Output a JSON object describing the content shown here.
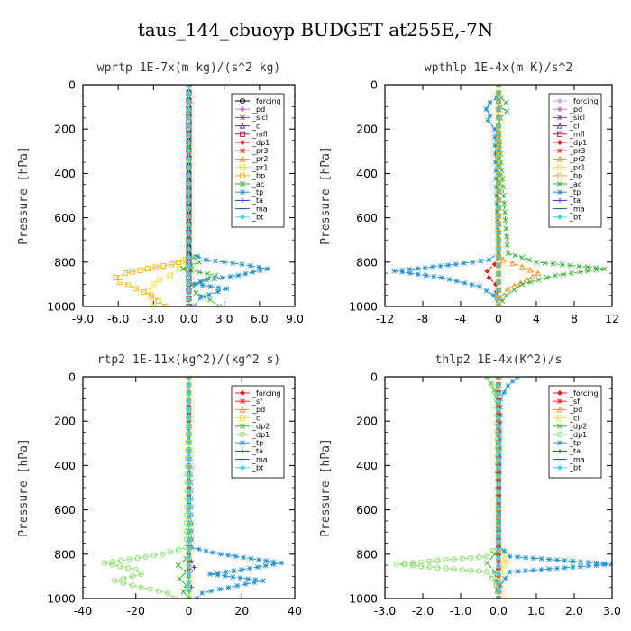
{
  "figure_title": "taus_144_cbuoyp  BUDGET at255E,-7N",
  "chart_data": [
    {
      "type": "line",
      "title": "wprtp  1E-7x(m kg)/(s^2 kg)",
      "ylabel": "Pressure [hPa]",
      "xlim": [
        -9,
        9
      ],
      "ylim": [
        1000,
        0
      ],
      "xticks": [
        -9,
        -6,
        -3,
        0,
        3,
        6,
        9
      ],
      "xtick_labels": [
        "-9.0",
        "-6.0",
        "-3.0",
        "0.0",
        "3.0",
        "6.0",
        "9.0"
      ],
      "yticks": [
        0,
        200,
        400,
        600,
        800,
        1000
      ],
      "ytick_labels": [
        "0",
        "200",
        "400",
        "600",
        "800",
        "1000"
      ],
      "legend": "top-right",
      "series": [
        {
          "name": "_forcing",
          "color": "#000000",
          "marker": "circle",
          "x": [
            0,
            0,
            0,
            0,
            0,
            0,
            0,
            0,
            0,
            0,
            0
          ],
          "y": [
            0,
            100,
            200,
            300,
            400,
            500,
            600,
            700,
            800,
            900,
            1000
          ]
        },
        {
          "name": "_pd",
          "color": "#c080c0",
          "marker": "diamond",
          "x": [
            0,
            0
          ],
          "y": [
            0,
            1000
          ]
        },
        {
          "name": "_sicl",
          "color": "#8040c0",
          "marker": "star",
          "x": [
            0,
            0
          ],
          "y": [
            0,
            1000
          ]
        },
        {
          "name": "_cl",
          "color": "#603090",
          "marker": "triangle",
          "x": [
            0,
            0
          ],
          "y": [
            0,
            1000
          ]
        },
        {
          "name": "_mfl",
          "color": "#a0205a",
          "marker": "square",
          "x": [
            0,
            0
          ],
          "y": [
            0,
            1000
          ]
        },
        {
          "name": "_dp1",
          "color": "#e02020",
          "marker": "diamond",
          "x": [
            0,
            0
          ],
          "y": [
            0,
            1000
          ]
        },
        {
          "name": "_pr3",
          "color": "#ff2020",
          "marker": "star",
          "x": [
            0,
            0
          ],
          "y": [
            0,
            1000
          ]
        },
        {
          "name": "_pr2",
          "color": "#ff9020",
          "marker": "triangle",
          "x": [
            0,
            0
          ],
          "y": [
            0,
            1000
          ]
        },
        {
          "name": "_pr1",
          "color": "#f0e030",
          "marker": "square",
          "x": [
            0,
            0,
            0,
            -0.3,
            -0.8,
            -1.6,
            -2.5,
            -3.0,
            -3.4,
            -3.2,
            -3.0
          ],
          "y": [
            0,
            700,
            780,
            800,
            830,
            860,
            880,
            900,
            930,
            960,
            1000
          ]
        },
        {
          "name": "_bp",
          "color": "#ffb000",
          "marker": "square",
          "x": [
            0,
            0,
            -0.3,
            -1.5,
            -3.5,
            -5.4,
            -6.2,
            -5.8,
            -4.5,
            -3.2,
            -2.0
          ],
          "y": [
            0,
            760,
            790,
            810,
            830,
            850,
            870,
            890,
            920,
            950,
            1000
          ]
        },
        {
          "name": "_ac",
          "color": "#30b030",
          "marker": "x",
          "x": [
            0,
            0,
            0.4,
            0.9,
            -0.5,
            2.3,
            0.3,
            0.6,
            1.8,
            2.6
          ],
          "y": [
            0,
            750,
            780,
            800,
            830,
            860,
            900,
            940,
            970,
            1000
          ]
        },
        {
          "name": "_tp",
          "color": "#2090d0",
          "marker": "star",
          "x": [
            0,
            0,
            1.5,
            4.5,
            6.7,
            4.2,
            1.5,
            0.5,
            3.2,
            1.0,
            0.4
          ],
          "y": [
            0,
            760,
            790,
            810,
            830,
            860,
            880,
            900,
            920,
            960,
            1000
          ]
        },
        {
          "name": "_ta",
          "color": "#2040d0",
          "marker": "plus",
          "x": [
            0,
            0
          ],
          "y": [
            0,
            1000
          ]
        },
        {
          "name": "_ma",
          "color": "#2060a0",
          "marker": "dash",
          "x": [
            0,
            0
          ],
          "y": [
            0,
            1000
          ]
        },
        {
          "name": "_bt",
          "color": "#40d0f0",
          "marker": "diamond",
          "x": [
            0,
            0
          ],
          "y": [
            0,
            1000
          ]
        }
      ]
    },
    {
      "type": "line",
      "title": "wpthlp  1E-4x(m K)/s^2",
      "ylabel": "Pressure [hPa]",
      "xlim": [
        -12,
        12
      ],
      "ylim": [
        1000,
        0
      ],
      "xticks": [
        -12,
        -8,
        -4,
        0,
        4,
        8,
        12
      ],
      "xtick_labels": [
        "-12",
        "-8",
        "-4",
        "0",
        "4",
        "8",
        "12"
      ],
      "yticks": [
        0,
        200,
        400,
        600,
        800,
        1000
      ],
      "ytick_labels": [
        "0",
        "200",
        "400",
        "600",
        "800",
        "1000"
      ],
      "legend": "top-right",
      "series": [
        {
          "name": "_forcing",
          "color": "#d0a0e0",
          "marker": "diamond",
          "x": [
            0,
            0
          ],
          "y": [
            0,
            1000
          ]
        },
        {
          "name": "_pd",
          "color": "#c080c0",
          "marker": "diamond",
          "x": [
            0,
            0
          ],
          "y": [
            0,
            1000
          ]
        },
        {
          "name": "_sicl",
          "color": "#8040c0",
          "marker": "star",
          "x": [
            0,
            0
          ],
          "y": [
            0,
            1000
          ]
        },
        {
          "name": "_cl",
          "color": "#603090",
          "marker": "triangle",
          "x": [
            0,
            0
          ],
          "y": [
            0,
            1000
          ]
        },
        {
          "name": "_mfl",
          "color": "#a0205a",
          "marker": "square",
          "x": [
            0,
            0
          ],
          "y": [
            0,
            1000
          ]
        },
        {
          "name": "_dp1",
          "color": "#e02020",
          "marker": "diamond",
          "x": [
            0,
            0,
            -0.4,
            -1.2,
            -1.0,
            -0.3,
            0
          ],
          "y": [
            0,
            780,
            810,
            840,
            870,
            900,
            1000
          ]
        },
        {
          "name": "_pr3",
          "color": "#ff2020",
          "marker": "star",
          "x": [
            0,
            0
          ],
          "y": [
            0,
            1000
          ]
        },
        {
          "name": "_pr2",
          "color": "#ff9020",
          "marker": "triangle",
          "x": [
            0,
            0,
            0.5,
            2.5,
            4.2,
            3.0,
            1.0,
            0.2,
            0
          ],
          "y": [
            0,
            760,
            790,
            820,
            850,
            880,
            920,
            960,
            1000
          ]
        },
        {
          "name": "_pr1",
          "color": "#f0e030",
          "marker": "square",
          "x": [
            0,
            0
          ],
          "y": [
            0,
            1000
          ]
        },
        {
          "name": "_bp",
          "color": "#ffb000",
          "marker": "square",
          "x": [
            0,
            0
          ],
          "y": [
            0,
            1000
          ]
        },
        {
          "name": "_ac",
          "color": "#30b030",
          "marker": "x",
          "x": [
            0.3,
            0.8,
            0.2,
            0.9,
            0.2,
            0,
            1.0,
            4.0,
            11.2,
            6.0,
            2.5,
            0.8,
            0
          ],
          "y": [
            60,
            80,
            100,
            120,
            150,
            200,
            760,
            800,
            830,
            860,
            900,
            950,
            1000
          ]
        },
        {
          "name": "_tp",
          "color": "#2090d0",
          "marker": "star",
          "x": [
            -0.2,
            -0.9,
            -1.3,
            -0.9,
            -1.1,
            -0.4,
            0,
            -1.0,
            -4.5,
            -11.0,
            -6.0,
            -2.0,
            -0.5,
            0
          ],
          "y": [
            60,
            80,
            110,
            140,
            160,
            200,
            760,
            790,
            810,
            840,
            870,
            910,
            950,
            1000
          ]
        },
        {
          "name": "_ta",
          "color": "#2040d0",
          "marker": "plus",
          "x": [
            0,
            0
          ],
          "y": [
            0,
            1000
          ]
        },
        {
          "name": "_ma",
          "color": "#2060a0",
          "marker": "dash",
          "x": [
            0,
            0
          ],
          "y": [
            0,
            1000
          ]
        },
        {
          "name": "_bt",
          "color": "#40d0f0",
          "marker": "diamond",
          "x": [
            0,
            0
          ],
          "y": [
            0,
            1000
          ]
        }
      ]
    },
    {
      "type": "line",
      "title": "rtp2  1E-11x(kg^2)/(kg^2 s)",
      "ylabel": "Pressure [hPa]",
      "xlim": [
        -40,
        40
      ],
      "ylim": [
        1000,
        0
      ],
      "xticks": [
        -40,
        -20,
        0,
        20,
        40
      ],
      "xtick_labels": [
        "-40",
        "-20",
        "0",
        "20",
        "40"
      ],
      "yticks": [
        0,
        200,
        400,
        600,
        800,
        1000
      ],
      "ytick_labels": [
        "0",
        "200",
        "400",
        "600",
        "800",
        "1000"
      ],
      "legend": "top-right",
      "series": [
        {
          "name": "_forcing",
          "color": "#e02020",
          "marker": "diamond",
          "x": [
            0,
            0,
            0,
            0,
            0,
            0,
            0,
            0,
            0,
            0,
            0
          ],
          "y": [
            0,
            100,
            200,
            300,
            400,
            500,
            600,
            700,
            800,
            900,
            1000
          ]
        },
        {
          "name": "_sf",
          "color": "#ff2020",
          "marker": "star",
          "x": [
            0,
            0
          ],
          "y": [
            0,
            1000
          ]
        },
        {
          "name": "_pd",
          "color": "#ff9020",
          "marker": "triangle",
          "x": [
            0,
            0
          ],
          "y": [
            0,
            1000
          ]
        },
        {
          "name": "_cl",
          "color": "#f0e030",
          "marker": "square",
          "x": [
            0,
            0
          ],
          "y": [
            0,
            1000
          ]
        },
        {
          "name": "_dp2",
          "color": "#30b030",
          "marker": "x",
          "x": [
            0,
            0,
            -1.0,
            -4.0,
            -1.0,
            -3.5,
            -1.0,
            -2.0,
            0
          ],
          "y": [
            0,
            780,
            820,
            850,
            880,
            910,
            940,
            970,
            1000
          ]
        },
        {
          "name": "_dp1",
          "color": "#80e060",
          "marker": "circle",
          "x": [
            0,
            -1,
            -10,
            -32,
            -20,
            -18,
            -28,
            -18,
            -8,
            -5
          ],
          "y": [
            0,
            770,
            800,
            840,
            870,
            890,
            920,
            950,
            975,
            1000
          ]
        },
        {
          "name": "_tp",
          "color": "#2090d0",
          "marker": "star",
          "x": [
            0,
            1,
            12,
            35,
            20,
            8,
            28,
            15,
            5,
            3
          ],
          "y": [
            0,
            770,
            800,
            840,
            870,
            890,
            920,
            950,
            975,
            1000
          ]
        },
        {
          "name": "_ta",
          "color": "#2040d0",
          "marker": "plus",
          "x": [
            0,
            0,
            2,
            0,
            1,
            0
          ],
          "y": [
            0,
            800,
            860,
            900,
            950,
            1000
          ]
        },
        {
          "name": "_ma",
          "color": "#2060a0",
          "marker": "dash",
          "x": [
            0,
            0
          ],
          "y": [
            0,
            1000
          ]
        },
        {
          "name": "_bt",
          "color": "#40d0f0",
          "marker": "diamond",
          "x": [
            0,
            0
          ],
          "y": [
            0,
            1000
          ]
        }
      ]
    },
    {
      "type": "line",
      "title": "thlp2  1E-4x(K^2)/s",
      "ylabel": "Pressure [hPa]",
      "xlim": [
        -3,
        3
      ],
      "ylim": [
        1000,
        0
      ],
      "xticks": [
        -3,
        -2,
        -1,
        0,
        1,
        2,
        3
      ],
      "xtick_labels": [
        "-3.0",
        "-2.0",
        "-1.0",
        "0.0",
        "1.0",
        "2.0",
        "3.0"
      ],
      "yticks": [
        0,
        200,
        400,
        600,
        800,
        1000
      ],
      "ytick_labels": [
        "0",
        "200",
        "400",
        "600",
        "800",
        "1000"
      ],
      "legend": "top-right",
      "series": [
        {
          "name": "_forcing",
          "color": "#e02020",
          "marker": "diamond",
          "x": [
            0,
            0,
            0,
            0,
            0,
            0,
            0,
            0,
            0,
            0,
            0
          ],
          "y": [
            0,
            100,
            200,
            300,
            400,
            500,
            600,
            700,
            800,
            900,
            1000
          ]
        },
        {
          "name": "_sf",
          "color": "#ff2020",
          "marker": "star",
          "x": [
            0,
            0
          ],
          "y": [
            0,
            1000
          ]
        },
        {
          "name": "_pd",
          "color": "#ff9020",
          "marker": "triangle",
          "x": [
            0,
            0
          ],
          "y": [
            0,
            1000
          ]
        },
        {
          "name": "_cl",
          "color": "#f0e030",
          "marker": "square",
          "x": [
            0,
            0,
            0.1,
            0.2,
            0.15,
            0.05,
            0
          ],
          "y": [
            0,
            760,
            790,
            820,
            850,
            880,
            1000
          ]
        },
        {
          "name": "_dp2",
          "color": "#30b030",
          "marker": "x",
          "x": [
            -0.3,
            -0.1,
            0,
            0,
            -0.1,
            -0.3,
            -0.1,
            0
          ],
          "y": [
            0,
            60,
            150,
            760,
            800,
            840,
            880,
            1000
          ]
        },
        {
          "name": "_dp1",
          "color": "#80e060",
          "marker": "circle",
          "x": [
            -0.3,
            -0.15,
            -0.05,
            0,
            -0.3,
            -2.7,
            -0.3,
            -0.05,
            0
          ],
          "y": [
            0,
            40,
            100,
            760,
            810,
            845,
            880,
            940,
            1000
          ]
        },
        {
          "name": "_tp",
          "color": "#2090d0",
          "marker": "star",
          "x": [
            0.5,
            0.25,
            0.05,
            0,
            0.3,
            3.0,
            0.3,
            0.05,
            0
          ],
          "y": [
            0,
            40,
            100,
            760,
            810,
            845,
            880,
            940,
            1000
          ]
        },
        {
          "name": "_ta",
          "color": "#2040d0",
          "marker": "plus",
          "x": [
            0,
            0
          ],
          "y": [
            0,
            1000
          ]
        },
        {
          "name": "_ma",
          "color": "#2060a0",
          "marker": "dash",
          "x": [
            0,
            0
          ],
          "y": [
            0,
            1000
          ]
        },
        {
          "name": "_bt",
          "color": "#40d0f0",
          "marker": "diamond",
          "x": [
            0,
            0
          ],
          "y": [
            0,
            1000
          ]
        }
      ]
    }
  ]
}
